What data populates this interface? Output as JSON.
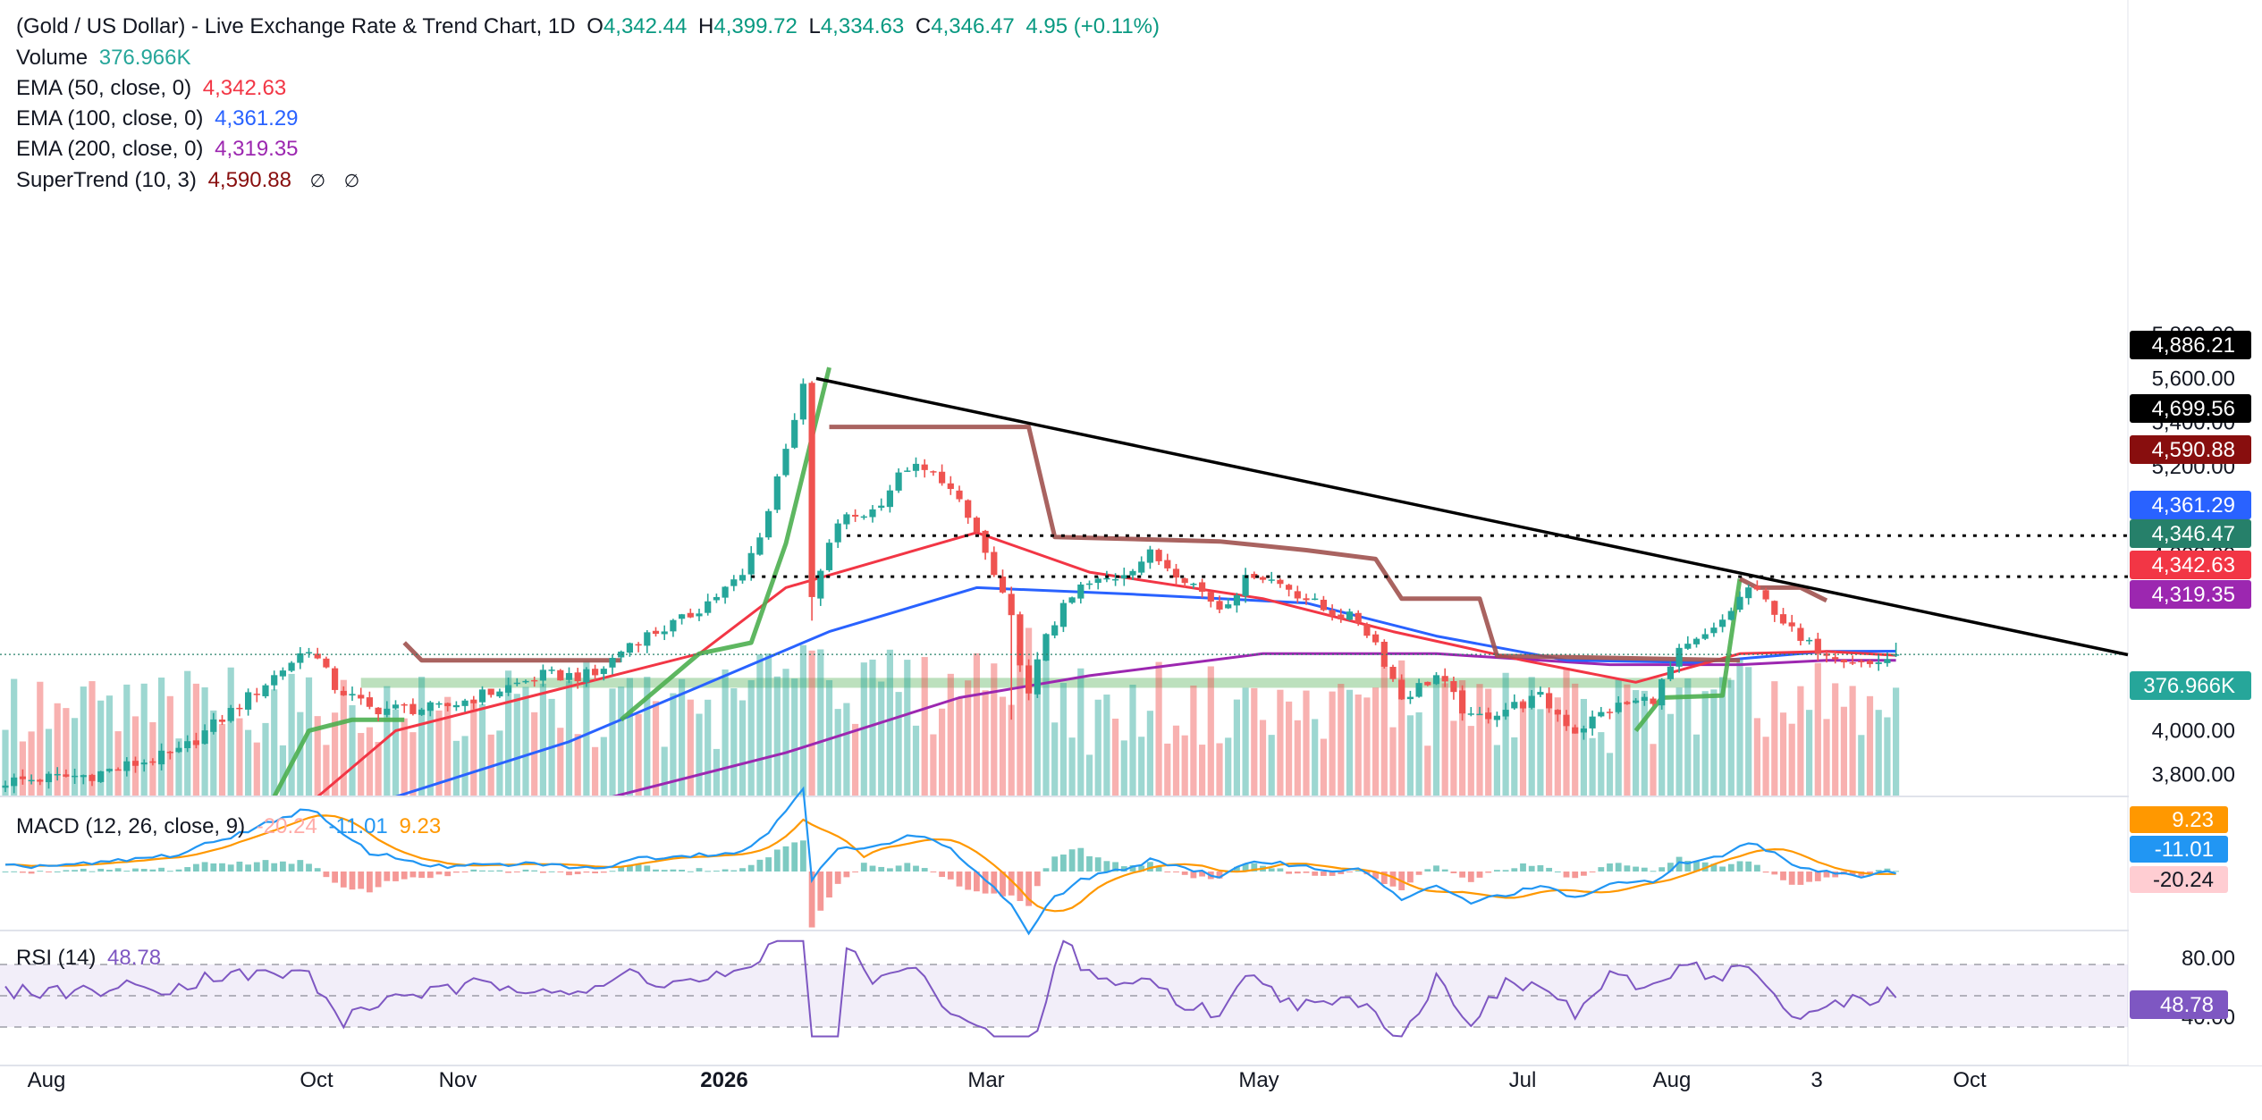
{
  "header": {
    "title": "(Gold / US Dollar) - Live Exchange Rate & Trend Chart, 1D",
    "o_label": "O",
    "o_value": "4,342.44",
    "h_label": "H",
    "h_value": "4,399.72",
    "l_label": "L",
    "l_value": "4,334.63",
    "c_label": "C",
    "c_value": "4,346.47",
    "change": "4.95 (+0.11%)"
  },
  "indicators": {
    "volume": {
      "label": "Volume",
      "value": "376.966K"
    },
    "ema50": {
      "label": "EMA (50, close, 0)",
      "value": "4,342.63"
    },
    "ema100": {
      "label": "EMA (100, close, 0)",
      "value": "4,361.29"
    },
    "ema200": {
      "label": "EMA (200, close, 0)",
      "value": "4,319.35"
    },
    "supertrend": {
      "label": "SuperTrend (10, 3)",
      "value": "4,590.88",
      "icons": [
        "eye-off-icon",
        "eye-off-icon"
      ],
      "icon_glyph": "∅"
    },
    "macd": {
      "label": "MACD (12, 26, close, 9)",
      "hist": "-20.24",
      "macd": "-11.01",
      "signal": "9.23"
    },
    "rsi": {
      "label": "RSI (14)",
      "value": "48.78"
    }
  },
  "price_axis": {
    "ticks": [
      "5,800.00",
      "5,600.00",
      "5,400.00",
      "5,200.00",
      "5,000.00",
      "4,800.00",
      "4,000.00",
      "3,800.00"
    ],
    "tags": [
      {
        "text": "4,886.21",
        "color": "#000000"
      },
      {
        "text": "4,699.56",
        "color": "#000000"
      },
      {
        "text": "4,590.88",
        "color": "#880e0e"
      },
      {
        "text": "4,361.29",
        "color": "#2962ff"
      },
      {
        "text": "4,346.47",
        "color": "#26806a"
      },
      {
        "text": "4,342.63",
        "color": "#f23645"
      },
      {
        "text": "4,319.35",
        "color": "#9c27b0"
      },
      {
        "text": "376.966K",
        "color": "#26a69a"
      }
    ]
  },
  "macd_axis": {
    "tags": [
      {
        "text": "9.23",
        "color": "#ff9800",
        "text_color": "#ffffff"
      },
      {
        "text": "-11.01",
        "color": "#2196f3",
        "text_color": "#ffffff"
      },
      {
        "text": "-20.24",
        "color": "#ffcdd2",
        "text_color": "#131722"
      }
    ]
  },
  "rsi_axis": {
    "ticks": [
      "80.00",
      "40.00"
    ],
    "tag": {
      "text": "48.78",
      "color": "#7e57c2"
    }
  },
  "time_axis": {
    "labels": [
      {
        "text": "Aug",
        "bold": false
      },
      {
        "text": "Oct",
        "bold": false
      },
      {
        "text": "Nov",
        "bold": false
      },
      {
        "text": "2026",
        "bold": true
      },
      {
        "text": "Mar",
        "bold": false
      },
      {
        "text": "May",
        "bold": false
      },
      {
        "text": "Jul",
        "bold": false
      },
      {
        "text": "Aug",
        "bold": false
      },
      {
        "text": "3",
        "bold": false
      },
      {
        "text": "Oct",
        "bold": false
      }
    ]
  },
  "colors": {
    "up": "#26a69a",
    "down": "#ef5350",
    "ema50": "#f23645",
    "ema100": "#2962ff",
    "ema200": "#9c27b0",
    "st_bull": "#4caf50",
    "st_bear": "#a0524f",
    "macd": "#2196f3",
    "signal": "#ff9800",
    "rsi": "#7e57c2",
    "zone": "#a5d6a7",
    "trend": "#000000"
  },
  "chart_data": {
    "type": "candlestick",
    "instrument": "XAU/USD",
    "timeframe": "1D",
    "price_range": [
      3700,
      5850
    ],
    "x_months": [
      "Aug",
      "Oct",
      "Nov",
      "2026",
      "Mar",
      "May",
      "Jul",
      "Aug",
      "3",
      "Oct"
    ],
    "ohlc_last": {
      "open": 4342.44,
      "high": 4399.72,
      "low": 4334.63,
      "close": 4346.47
    },
    "price_path_approx": [
      [
        0,
        3770
      ],
      [
        10,
        3800
      ],
      [
        20,
        3900
      ],
      [
        28,
        4150
      ],
      [
        35,
        4380
      ],
      [
        38,
        4200
      ],
      [
        42,
        4100
      ],
      [
        50,
        4100
      ],
      [
        58,
        4200
      ],
      [
        62,
        4250
      ],
      [
        68,
        4250
      ],
      [
        72,
        4400
      ],
      [
        78,
        4500
      ],
      [
        85,
        4700
      ],
      [
        88,
        5000
      ],
      [
        90,
        5300
      ],
      [
        92,
        5550
      ],
      [
        93,
        4600
      ],
      [
        96,
        4950
      ],
      [
        100,
        5000
      ],
      [
        104,
        5200
      ],
      [
        108,
        5150
      ],
      [
        112,
        4900
      ],
      [
        116,
        4500
      ],
      [
        118,
        4150
      ],
      [
        120,
        4450
      ],
      [
        124,
        4650
      ],
      [
        128,
        4700
      ],
      [
        132,
        4800
      ],
      [
        136,
        4700
      ],
      [
        140,
        4560
      ],
      [
        144,
        4720
      ],
      [
        148,
        4650
      ],
      [
        152,
        4550
      ],
      [
        156,
        4500
      ],
      [
        158,
        4400
      ],
      [
        161,
        4150
      ],
      [
        165,
        4250
      ],
      [
        169,
        4050
      ],
      [
        173,
        4100
      ],
      [
        177,
        4150
      ],
      [
        181,
        4000
      ],
      [
        185,
        4100
      ],
      [
        190,
        4150
      ],
      [
        193,
        4350
      ],
      [
        197,
        4450
      ],
      [
        201,
        4650
      ],
      [
        204,
        4550
      ],
      [
        207,
        4400
      ],
      [
        211,
        4350
      ],
      [
        215,
        4300
      ],
      [
        218,
        4346
      ]
    ],
    "ema50_path_approx": [
      [
        36,
        3700
      ],
      [
        45,
        4000
      ],
      [
        60,
        4150
      ],
      [
        80,
        4350
      ],
      [
        90,
        4650
      ],
      [
        112,
        4900
      ],
      [
        125,
        4720
      ],
      [
        145,
        4600
      ],
      [
        160,
        4450
      ],
      [
        175,
        4320
      ],
      [
        188,
        4220
      ],
      [
        200,
        4350
      ],
      [
        210,
        4360
      ],
      [
        218,
        4342.63
      ]
    ],
    "ema100_path_approx": [
      [
        45,
        3700
      ],
      [
        65,
        3950
      ],
      [
        80,
        4200
      ],
      [
        95,
        4450
      ],
      [
        112,
        4650
      ],
      [
        130,
        4620
      ],
      [
        150,
        4580
      ],
      [
        165,
        4430
      ],
      [
        180,
        4320
      ],
      [
        195,
        4310
      ],
      [
        210,
        4360
      ],
      [
        218,
        4361.29
      ]
    ],
    "ema200_path_approx": [
      [
        70,
        3700
      ],
      [
        90,
        3900
      ],
      [
        110,
        4150
      ],
      [
        125,
        4250
      ],
      [
        145,
        4350
      ],
      [
        165,
        4350
      ],
      [
        185,
        4300
      ],
      [
        200,
        4300
      ],
      [
        210,
        4320
      ],
      [
        218,
        4319.35
      ]
    ],
    "supertrend_segments_approx": [
      {
        "trend": "bull",
        "points": [
          [
            31,
            3700
          ],
          [
            35,
            4000
          ],
          [
            40,
            4050
          ],
          [
            46,
            4050
          ]
        ]
      },
      {
        "trend": "bear",
        "points": [
          [
            46,
            4400
          ],
          [
            48,
            4320
          ],
          [
            71,
            4320
          ]
        ]
      },
      {
        "trend": "bull",
        "points": [
          [
            71,
            4050
          ],
          [
            74,
            4150
          ],
          [
            80,
            4350
          ],
          [
            86,
            4400
          ],
          [
            90,
            4850
          ],
          [
            95,
            5650
          ]
        ]
      },
      {
        "trend": "bear",
        "points": [
          [
            95,
            5380
          ],
          [
            118,
            5380
          ],
          [
            121,
            4880
          ],
          [
            140,
            4860
          ],
          [
            150,
            4820
          ],
          [
            158,
            4780
          ],
          [
            161,
            4600
          ],
          [
            170,
            4600
          ],
          [
            172,
            4340
          ],
          [
            200,
            4320
          ]
        ]
      },
      {
        "trend": "bull",
        "points": [
          [
            188,
            4000
          ],
          [
            191,
            4150
          ],
          [
            198,
            4160
          ],
          [
            200,
            4690
          ]
        ]
      },
      {
        "trend": "bear",
        "points": [
          [
            200,
            4690
          ],
          [
            202,
            4650
          ],
          [
            207,
            4650
          ],
          [
            210,
            4590.88
          ]
        ]
      }
    ],
    "horizontal_levels": [
      4886.21,
      4699.56
    ],
    "support_zone": [
      4195,
      4240
    ],
    "trendline": {
      "from": [
        5620,
        "Jan 2026 high"
      ],
      "to": "descending through Aug"
    },
    "volume_last": "376.966K",
    "macd": {
      "macd": -11.01,
      "signal": 9.23,
      "histogram": -20.24
    },
    "rsi": {
      "value": 48.78,
      "levels": [
        70,
        30
      ],
      "ticks": [
        "80.00",
        "40.00"
      ]
    }
  }
}
